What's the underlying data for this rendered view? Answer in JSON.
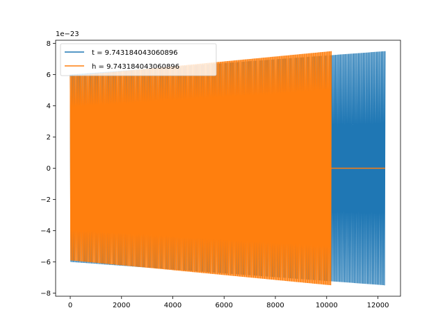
{
  "chart_data": {
    "type": "line",
    "title": "",
    "xlabel": "",
    "ylabel": "",
    "y_offset_label": "1e−23",
    "xlim": [
      -570,
      12880
    ],
    "ylim": [
      -8.2,
      8.2
    ],
    "x_ticks": [
      0,
      2000,
      4000,
      6000,
      8000,
      10000,
      12000
    ],
    "x_tick_labels": [
      "0",
      "2000",
      "4000",
      "6000",
      "8000",
      "10000",
      "12000"
    ],
    "y_ticks": [
      -8,
      -6,
      -4,
      -2,
      0,
      2,
      4,
      6,
      8
    ],
    "y_tick_labels": [
      "−8",
      "−6",
      "−4",
      "−2",
      "0",
      "2",
      "4",
      "6",
      "8"
    ],
    "grid": false,
    "legend_position": "top-left",
    "series": [
      {
        "name": "t = 9.743184043060896",
        "color": "#1f77b4",
        "x_end": 12280,
        "envelope_start": 6.0,
        "envelope_end": 7.5,
        "tail_value": null
      },
      {
        "name": "h = 9.743184043060896",
        "color": "#ff7f0e",
        "x_end": 10180,
        "envelope_start": 5.9,
        "envelope_end": 7.5,
        "tail_value": 0,
        "tail_x_end": 12280
      }
    ]
  }
}
